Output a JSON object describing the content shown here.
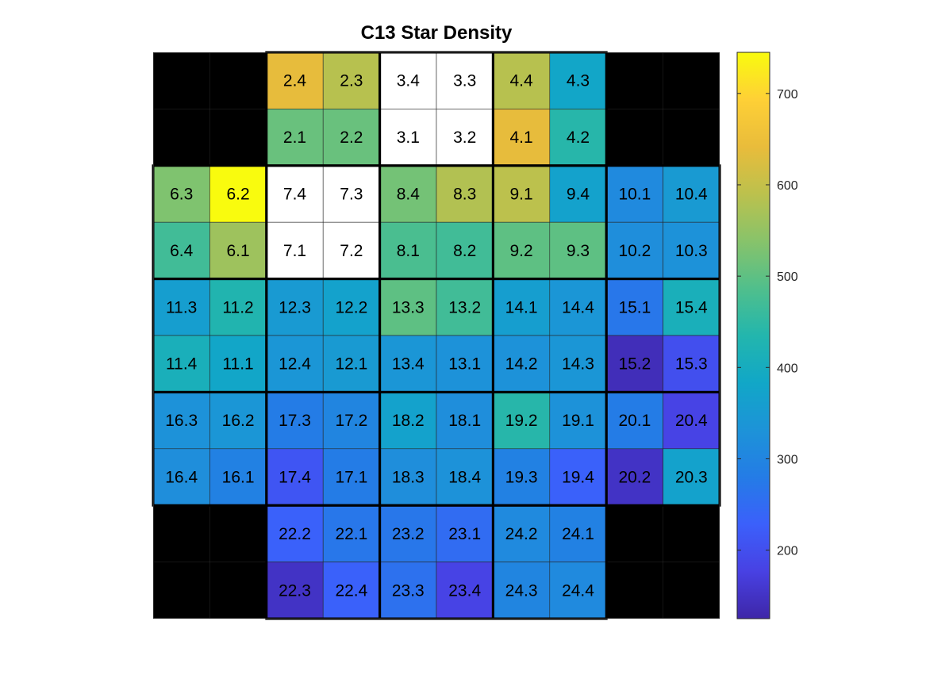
{
  "chart_data": {
    "type": "heatmap",
    "title": "C13 Star Density",
    "rows": [
      [
        null,
        null,
        {
          "label": "2.4",
          "value": 640
        },
        {
          "label": "2.3",
          "value": 585
        },
        {
          "label": "3.4",
          "value": null
        },
        {
          "label": "3.3",
          "value": null
        },
        {
          "label": "4.4",
          "value": 585
        },
        {
          "label": "4.3",
          "value": 380
        },
        null,
        null
      ],
      [
        null,
        null,
        {
          "label": "2.1",
          "value": 510
        },
        {
          "label": "2.2",
          "value": 510
        },
        {
          "label": "3.1",
          "value": null
        },
        {
          "label": "3.2",
          "value": null
        },
        {
          "label": "4.1",
          "value": 640
        },
        {
          "label": "4.2",
          "value": 440
        },
        null,
        null
      ],
      [
        {
          "label": "6.3",
          "value": 530
        },
        {
          "label": "6.2",
          "value": 745
        },
        {
          "label": "7.4",
          "value": null
        },
        {
          "label": "7.3",
          "value": null
        },
        {
          "label": "8.4",
          "value": 520
        },
        {
          "label": "8.3",
          "value": 580
        },
        {
          "label": "9.1",
          "value": 590
        },
        {
          "label": "9.4",
          "value": 370
        },
        {
          "label": "10.1",
          "value": 310
        },
        {
          "label": "10.4",
          "value": 350
        }
      ],
      [
        {
          "label": "6.4",
          "value": 470
        },
        {
          "label": "6.1",
          "value": 560
        },
        {
          "label": "7.1",
          "value": null
        },
        {
          "label": "7.2",
          "value": null
        },
        {
          "label": "8.1",
          "value": 480
        },
        {
          "label": "8.2",
          "value": 470
        },
        {
          "label": "9.2",
          "value": 500
        },
        {
          "label": "9.3",
          "value": 500
        },
        {
          "label": "10.2",
          "value": 320
        },
        {
          "label": "10.3",
          "value": 330
        }
      ],
      [
        {
          "label": "11.3",
          "value": 360
        },
        {
          "label": "11.2",
          "value": 430
        },
        {
          "label": "12.3",
          "value": 350
        },
        {
          "label": "12.2",
          "value": 370
        },
        {
          "label": "13.3",
          "value": 500
        },
        {
          "label": "13.2",
          "value": 470
        },
        {
          "label": "14.1",
          "value": 360
        },
        {
          "label": "14.4",
          "value": 340
        },
        {
          "label": "15.1",
          "value": 270
        },
        {
          "label": "15.4",
          "value": 410
        }
      ],
      [
        {
          "label": "11.4",
          "value": 410
        },
        {
          "label": "11.1",
          "value": 380
        },
        {
          "label": "12.4",
          "value": 340
        },
        {
          "label": "12.1",
          "value": 350
        },
        {
          "label": "13.4",
          "value": 340
        },
        {
          "label": "13.1",
          "value": 330
        },
        {
          "label": "14.2",
          "value": 330
        },
        {
          "label": "14.3",
          "value": 340
        },
        {
          "label": "15.2",
          "value": 140
        },
        {
          "label": "15.3",
          "value": 200
        }
      ],
      [
        {
          "label": "16.3",
          "value": 330
        },
        {
          "label": "16.2",
          "value": 340
        },
        {
          "label": "17.3",
          "value": 280
        },
        {
          "label": "17.2",
          "value": 300
        },
        {
          "label": "18.2",
          "value": 370
        },
        {
          "label": "18.1",
          "value": 320
        },
        {
          "label": "19.2",
          "value": 440
        },
        {
          "label": "19.1",
          "value": 330
        },
        {
          "label": "20.1",
          "value": 280
        },
        {
          "label": "20.4",
          "value": 180
        }
      ],
      [
        {
          "label": "16.4",
          "value": 320
        },
        {
          "label": "16.1",
          "value": 290
        },
        {
          "label": "17.4",
          "value": 210
        },
        {
          "label": "17.1",
          "value": 280
        },
        {
          "label": "18.3",
          "value": 320
        },
        {
          "label": "18.4",
          "value": 330
        },
        {
          "label": "19.3",
          "value": 290
        },
        {
          "label": "19.4",
          "value": 230
        },
        {
          "label": "20.2",
          "value": 150
        },
        {
          "label": "20.3",
          "value": 370
        }
      ],
      [
        null,
        null,
        {
          "label": "22.2",
          "value": 230
        },
        {
          "label": "22.1",
          "value": 270
        },
        {
          "label": "23.2",
          "value": 270
        },
        {
          "label": "23.1",
          "value": 250
        },
        {
          "label": "24.2",
          "value": 310
        },
        {
          "label": "24.1",
          "value": 290
        },
        null,
        null
      ],
      [
        null,
        null,
        {
          "label": "22.3",
          "value": 150
        },
        {
          "label": "22.4",
          "value": 230
        },
        {
          "label": "23.3",
          "value": 260
        },
        {
          "label": "23.4",
          "value": 180
        },
        {
          "label": "24.3",
          "value": 300
        },
        {
          "label": "24.4",
          "value": 310
        },
        null,
        null
      ]
    ],
    "missing_color": "#000000",
    "saturated_color": "#ffffff",
    "colorbar": {
      "colormap": "parula",
      "range": [
        125,
        745
      ],
      "ticks": [
        200,
        300,
        400,
        500,
        600,
        700
      ],
      "tick_labels": [
        "200",
        "300",
        "400",
        "500",
        "600",
        "700"
      ]
    },
    "grid": true,
    "module_grid": "2x2 blocks"
  }
}
